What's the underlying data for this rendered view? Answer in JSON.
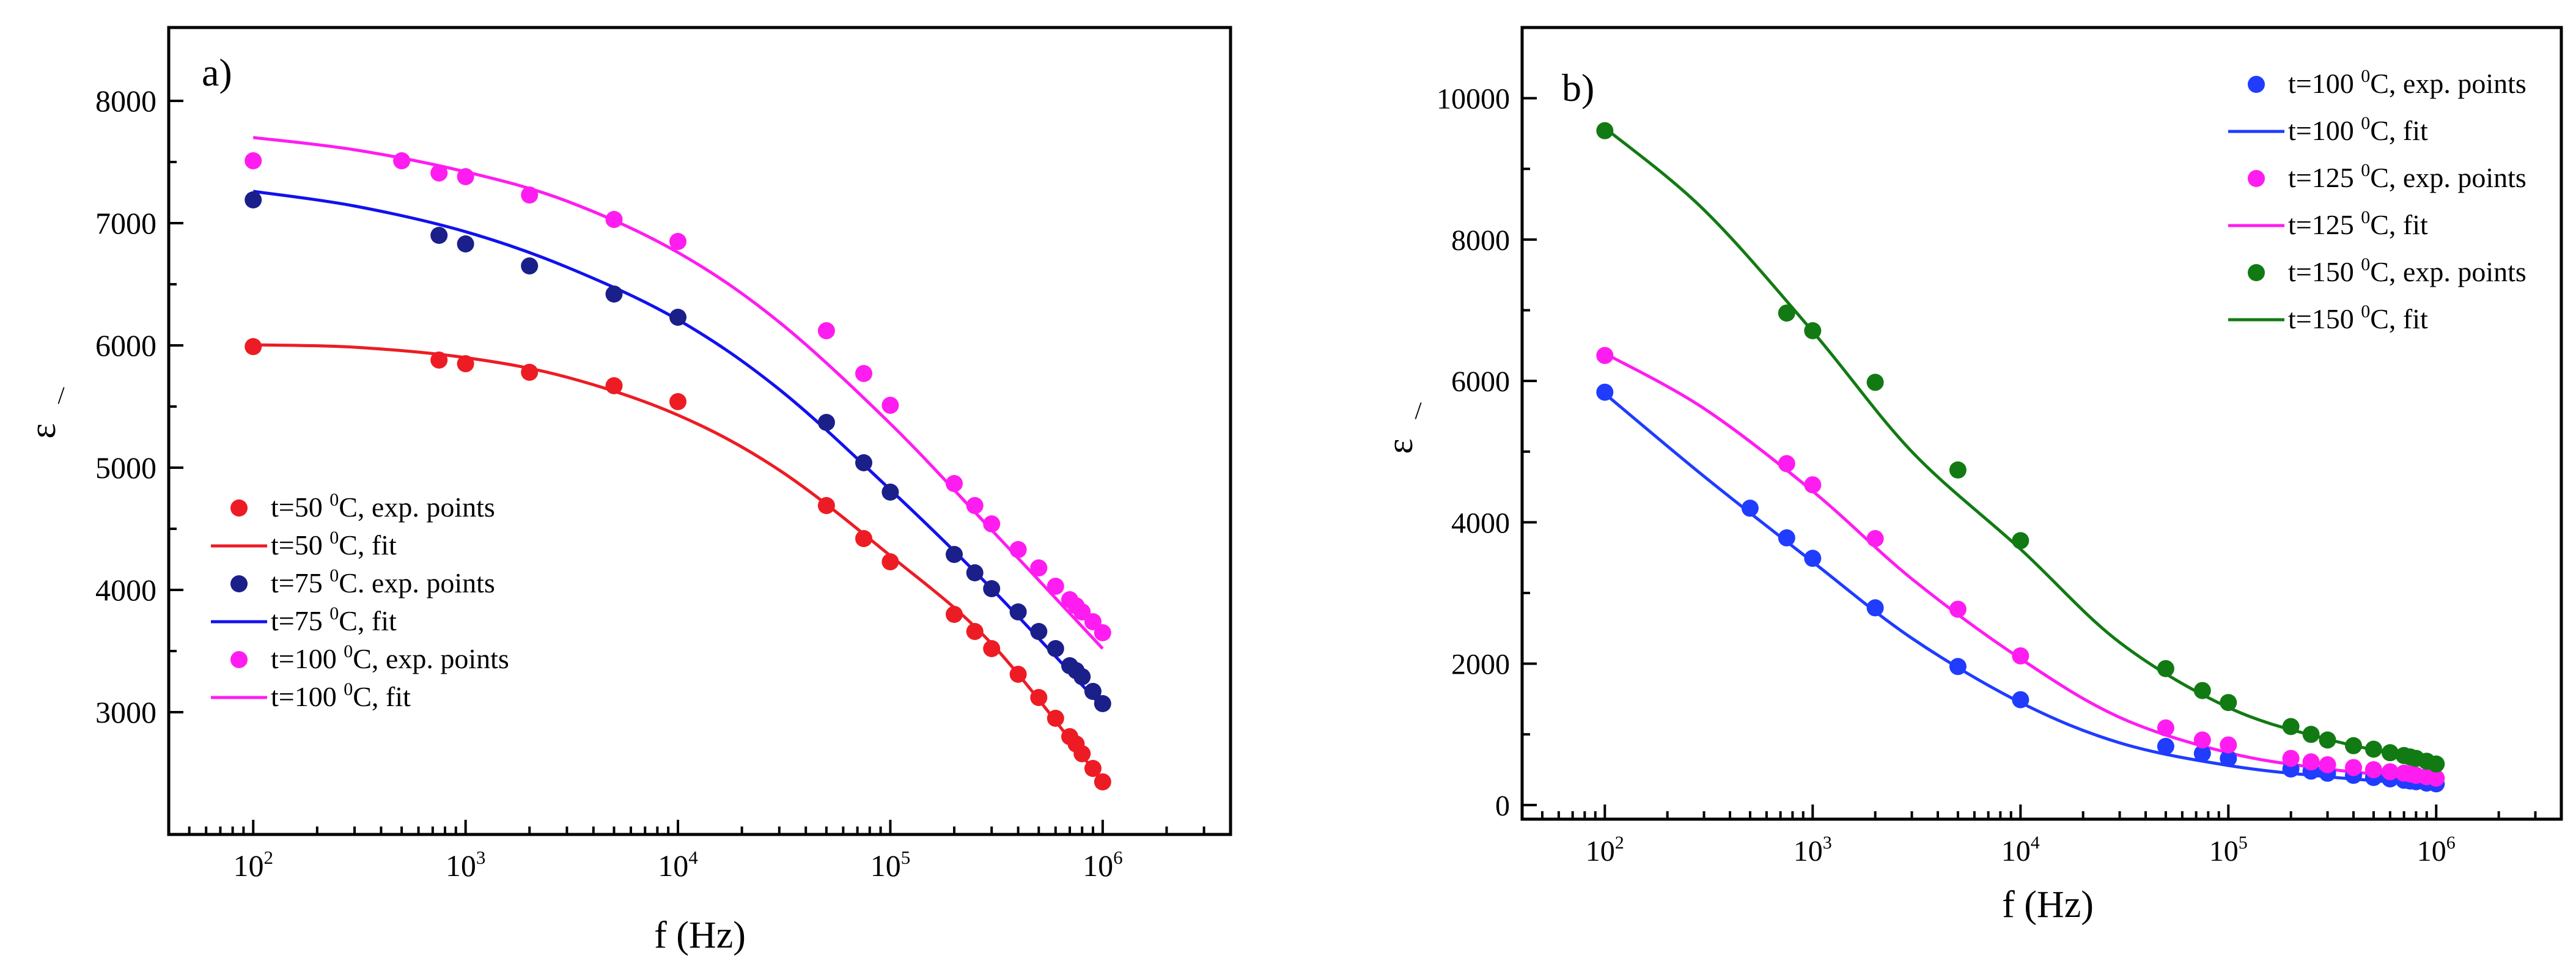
{
  "chart_data": [
    {
      "type": "scatter",
      "panel_label": "a)",
      "xlabel": "f (Hz)",
      "ylabel": "ε",
      "ylabel_mark": "/",
      "xscale": "log",
      "xlim": [
        40,
        4000000
      ],
      "ylim": [
        2000,
        8600
      ],
      "x_ticks": [
        {
          "base": "10",
          "exp": "2",
          "value": 100
        },
        {
          "base": "10",
          "exp": "3",
          "value": 1000
        },
        {
          "base": "10",
          "exp": "4",
          "value": 10000
        },
        {
          "base": "10",
          "exp": "5",
          "value": 100000
        },
        {
          "base": "10",
          "exp": "6",
          "value": 1000000
        }
      ],
      "y_ticks": [
        {
          "label": "3000",
          "value": 3000
        },
        {
          "label": "4000",
          "value": 4000
        },
        {
          "label": "5000",
          "value": 5000
        },
        {
          "label": "6000",
          "value": 6000
        },
        {
          "label": "7000",
          "value": 7000
        },
        {
          "label": "8000",
          "value": 8000
        }
      ],
      "legend_position": "bottom-left",
      "legend": [
        {
          "kind": "points",
          "prefix": "t=50 ",
          "sup": "0",
          "suffix": "C, exp. points",
          "color": "#ed1c24"
        },
        {
          "kind": "line",
          "prefix": "t=50 ",
          "sup": "0",
          "suffix": "C, fit",
          "color": "#ed1c24"
        },
        {
          "kind": "points",
          "prefix": "t=75 ",
          "sup": "0",
          "suffix": "C. exp. points",
          "color": "#1b1f8a"
        },
        {
          "kind": "line",
          "prefix": "t=75 ",
          "sup": "0",
          "suffix": "C, fit",
          "color": "#1111ee"
        },
        {
          "kind": "points",
          "prefix": "t=100 ",
          "sup": "0",
          "suffix": "C, exp. points",
          "color": "#ff1cf0"
        },
        {
          "kind": "line",
          "prefix": "t=100 ",
          "sup": "0",
          "suffix": "C, fit",
          "color": "#ff1cf0"
        }
      ],
      "series": [
        {
          "name": "t=50 °C",
          "point_color": "#ed1c24",
          "fit_color": "#ed1c24",
          "points": [
            [
              100,
              5990
            ],
            [
              750,
              5880
            ],
            [
              1000,
              5850
            ],
            [
              2000,
              5780
            ],
            [
              5000,
              5670
            ],
            [
              10000,
              5540
            ],
            [
              50000,
              4690
            ],
            [
              75000,
              4420
            ],
            [
              100000,
              4230
            ],
            [
              200000,
              3800
            ],
            [
              250000,
              3660
            ],
            [
              300000,
              3520
            ],
            [
              400000,
              3310
            ],
            [
              500000,
              3120
            ],
            [
              600000,
              2950
            ],
            [
              700000,
              2800
            ],
            [
              750000,
              2740
            ],
            [
              800000,
              2660
            ],
            [
              900000,
              2540
            ],
            [
              1000000,
              2430
            ]
          ],
          "fit": [
            [
              100,
              6005
            ],
            [
              300,
              5985
            ],
            [
              1000,
              5900
            ],
            [
              3000,
              5740
            ],
            [
              10000,
              5430
            ],
            [
              30000,
              4980
            ],
            [
              100000,
              4280
            ],
            [
              300000,
              3560
            ],
            [
              1000000,
              2430
            ]
          ]
        },
        {
          "name": "t=75 °C",
          "point_color": "#1b1f8a",
          "fit_color": "#1111ee",
          "points": [
            [
              100,
              7190
            ],
            [
              750,
              6900
            ],
            [
              1000,
              6830
            ],
            [
              2000,
              6650
            ],
            [
              5000,
              6420
            ],
            [
              10000,
              6230
            ],
            [
              50000,
              5370
            ],
            [
              75000,
              5040
            ],
            [
              100000,
              4800
            ],
            [
              200000,
              4290
            ],
            [
              250000,
              4140
            ],
            [
              300000,
              4010
            ],
            [
              400000,
              3820
            ],
            [
              500000,
              3660
            ],
            [
              600000,
              3520
            ],
            [
              700000,
              3380
            ],
            [
              750000,
              3340
            ],
            [
              800000,
              3290
            ],
            [
              900000,
              3170
            ],
            [
              1000000,
              3070
            ]
          ],
          "fit": [
            [
              100,
              7260
            ],
            [
              300,
              7140
            ],
            [
              1000,
              6930
            ],
            [
              3000,
              6640
            ],
            [
              10000,
              6210
            ],
            [
              30000,
              5640
            ],
            [
              100000,
              4820
            ],
            [
              300000,
              4010
            ],
            [
              1000000,
              3040
            ]
          ]
        },
        {
          "name": "t=100 °C",
          "point_color": "#ff1cf0",
          "fit_color": "#ff1cf0",
          "points": [
            [
              100,
              7510
            ],
            [
              500,
              7510
            ],
            [
              750,
              7410
            ],
            [
              1000,
              7380
            ],
            [
              2000,
              7230
            ],
            [
              5000,
              7030
            ],
            [
              10000,
              6850
            ],
            [
              50000,
              6120
            ],
            [
              75000,
              5770
            ],
            [
              100000,
              5510
            ],
            [
              200000,
              4870
            ],
            [
              250000,
              4690
            ],
            [
              300000,
              4540
            ],
            [
              400000,
              4330
            ],
            [
              500000,
              4180
            ],
            [
              600000,
              4030
            ],
            [
              700000,
              3920
            ],
            [
              750000,
              3870
            ],
            [
              800000,
              3820
            ],
            [
              900000,
              3740
            ],
            [
              1000000,
              3650
            ]
          ],
          "fit": [
            [
              100,
              7700
            ],
            [
              300,
              7600
            ],
            [
              1000,
              7420
            ],
            [
              3000,
              7180
            ],
            [
              10000,
              6760
            ],
            [
              30000,
              6190
            ],
            [
              100000,
              5360
            ],
            [
              300000,
              4490
            ],
            [
              1000000,
              3520
            ]
          ]
        }
      ]
    },
    {
      "type": "scatter",
      "panel_label": "b)",
      "xlabel": "f (Hz)",
      "ylabel": "ε",
      "ylabel_mark": "/",
      "xscale": "log",
      "xlim": [
        40,
        4000000
      ],
      "ylim": [
        -200,
        11000
      ],
      "x_ticks": [
        {
          "base": "10",
          "exp": "2",
          "value": 100
        },
        {
          "base": "10",
          "exp": "3",
          "value": 1000
        },
        {
          "base": "10",
          "exp": "4",
          "value": 10000
        },
        {
          "base": "10",
          "exp": "5",
          "value": 100000
        },
        {
          "base": "10",
          "exp": "6",
          "value": 1000000
        }
      ],
      "y_ticks": [
        {
          "label": "0",
          "value": 0
        },
        {
          "label": "2000",
          "value": 2000
        },
        {
          "label": "4000",
          "value": 4000
        },
        {
          "label": "6000",
          "value": 6000
        },
        {
          "label": "8000",
          "value": 8000
        },
        {
          "label": "10000",
          "value": 10000
        }
      ],
      "legend_position": "top-right",
      "legend": [
        {
          "kind": "points",
          "prefix": "t=100 ",
          "sup": "0",
          "suffix": "C, exp. points",
          "color": "#1f3cff"
        },
        {
          "kind": "line",
          "prefix": "t=100 ",
          "sup": "0",
          "suffix": "C, fit",
          "color": "#1f3cff"
        },
        {
          "kind": "points",
          "prefix": "t=125 ",
          "sup": "0",
          "suffix": "C, exp. points",
          "color": "#ff1cf0"
        },
        {
          "kind": "line",
          "prefix": "t=125 ",
          "sup": "0",
          "suffix": "C, fit",
          "color": "#ff1cf0"
        },
        {
          "kind": "points",
          "prefix": "t=150 ",
          "sup": "0",
          "suffix": "C, exp. points",
          "color": "#127a12"
        },
        {
          "kind": "line",
          "prefix": "t=150 ",
          "sup": "0",
          "suffix": "C, fit",
          "color": "#127a12"
        }
      ],
      "series": [
        {
          "name": "t=100 °C",
          "point_color": "#1f3cff",
          "fit_color": "#1f3cff",
          "points": [
            [
              100,
              5840
            ],
            [
              500,
              4200
            ],
            [
              750,
              3780
            ],
            [
              1000,
              3490
            ],
            [
              2000,
              2790
            ],
            [
              5000,
              1960
            ],
            [
              10000,
              1490
            ],
            [
              50000,
              830
            ],
            [
              75000,
              730
            ],
            [
              100000,
              660
            ],
            [
              200000,
              510
            ],
            [
              250000,
              480
            ],
            [
              300000,
              450
            ],
            [
              400000,
              420
            ],
            [
              500000,
              390
            ],
            [
              600000,
              370
            ],
            [
              700000,
              350
            ],
            [
              750000,
              340
            ],
            [
              800000,
              330
            ],
            [
              900000,
              310
            ],
            [
              1000000,
              300
            ]
          ],
          "fit": [
            [
              100,
              5820
            ],
            [
              300,
              4650
            ],
            [
              1000,
              3440
            ],
            [
              3000,
              2360
            ],
            [
              10000,
              1450
            ],
            [
              30000,
              880
            ],
            [
              100000,
              560
            ],
            [
              300000,
              400
            ],
            [
              1000000,
              280
            ]
          ]
        },
        {
          "name": "t=125 °C",
          "point_color": "#ff1cf0",
          "fit_color": "#ff1cf0",
          "points": [
            [
              100,
              6360
            ],
            [
              750,
              4830
            ],
            [
              1000,
              4530
            ],
            [
              2000,
              3770
            ],
            [
              5000,
              2770
            ],
            [
              10000,
              2110
            ],
            [
              50000,
              1090
            ],
            [
              75000,
              920
            ],
            [
              100000,
              850
            ],
            [
              200000,
              660
            ],
            [
              250000,
              610
            ],
            [
              300000,
              570
            ],
            [
              400000,
              530
            ],
            [
              500000,
              500
            ],
            [
              600000,
              470
            ],
            [
              700000,
              450
            ],
            [
              750000,
              440
            ],
            [
              800000,
              420
            ],
            [
              900000,
              400
            ],
            [
              1000000,
              380
            ]
          ],
          "fit": [
            [
              100,
              6390
            ],
            [
              300,
              5610
            ],
            [
              1000,
              4440
            ],
            [
              3000,
              3200
            ],
            [
              10000,
              2070
            ],
            [
              30000,
              1240
            ],
            [
              100000,
              740
            ],
            [
              300000,
              510
            ],
            [
              1000000,
              360
            ]
          ]
        },
        {
          "name": "t=150 °C",
          "point_color": "#127a12",
          "fit_color": "#127a12",
          "points": [
            [
              100,
              9540
            ],
            [
              750,
              6960
            ],
            [
              1000,
              6710
            ],
            [
              2000,
              5980
            ],
            [
              5000,
              4740
            ],
            [
              10000,
              3740
            ],
            [
              50000,
              1930
            ],
            [
              75000,
              1620
            ],
            [
              100000,
              1450
            ],
            [
              200000,
              1110
            ],
            [
              250000,
              1000
            ],
            [
              300000,
              920
            ],
            [
              400000,
              840
            ],
            [
              500000,
              790
            ],
            [
              600000,
              740
            ],
            [
              700000,
              700
            ],
            [
              750000,
              680
            ],
            [
              800000,
              660
            ],
            [
              900000,
              620
            ],
            [
              1000000,
              580
            ]
          ],
          "fit": [
            [
              100,
              9580
            ],
            [
              300,
              8420
            ],
            [
              1000,
              6700
            ],
            [
              3000,
              5000
            ],
            [
              10000,
              3620
            ],
            [
              30000,
              2300
            ],
            [
              100000,
              1380
            ],
            [
              300000,
              930
            ],
            [
              1000000,
              600
            ]
          ]
        }
      ]
    }
  ]
}
